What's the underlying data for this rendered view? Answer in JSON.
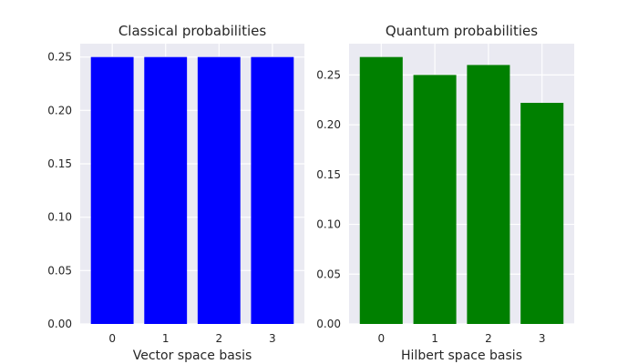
{
  "chart_data": [
    {
      "type": "bar",
      "title": "Classical probabilities",
      "xlabel": "Vector space basis",
      "ylabel": "",
      "categories": [
        "0",
        "1",
        "2",
        "3"
      ],
      "values": [
        0.25,
        0.25,
        0.25,
        0.25
      ],
      "ylim": [
        0,
        0.2625
      ],
      "yticks": [
        "0.00",
        "0.05",
        "0.10",
        "0.15",
        "0.20",
        "0.25"
      ],
      "bar_color": "#0000ff",
      "background": "#eaeaf2",
      "grid": true
    },
    {
      "type": "bar",
      "title": "Quantum probabilities",
      "xlabel": "Hilbert space basis",
      "ylabel": "",
      "categories": [
        "0",
        "1",
        "2",
        "3"
      ],
      "values": [
        0.268,
        0.25,
        0.26,
        0.222
      ],
      "ylim": [
        0,
        0.2814
      ],
      "yticks": [
        "0.00",
        "0.05",
        "0.10",
        "0.15",
        "0.20",
        "0.25"
      ],
      "bar_color": "#008000",
      "background": "#eaeaf2",
      "grid": true
    }
  ]
}
